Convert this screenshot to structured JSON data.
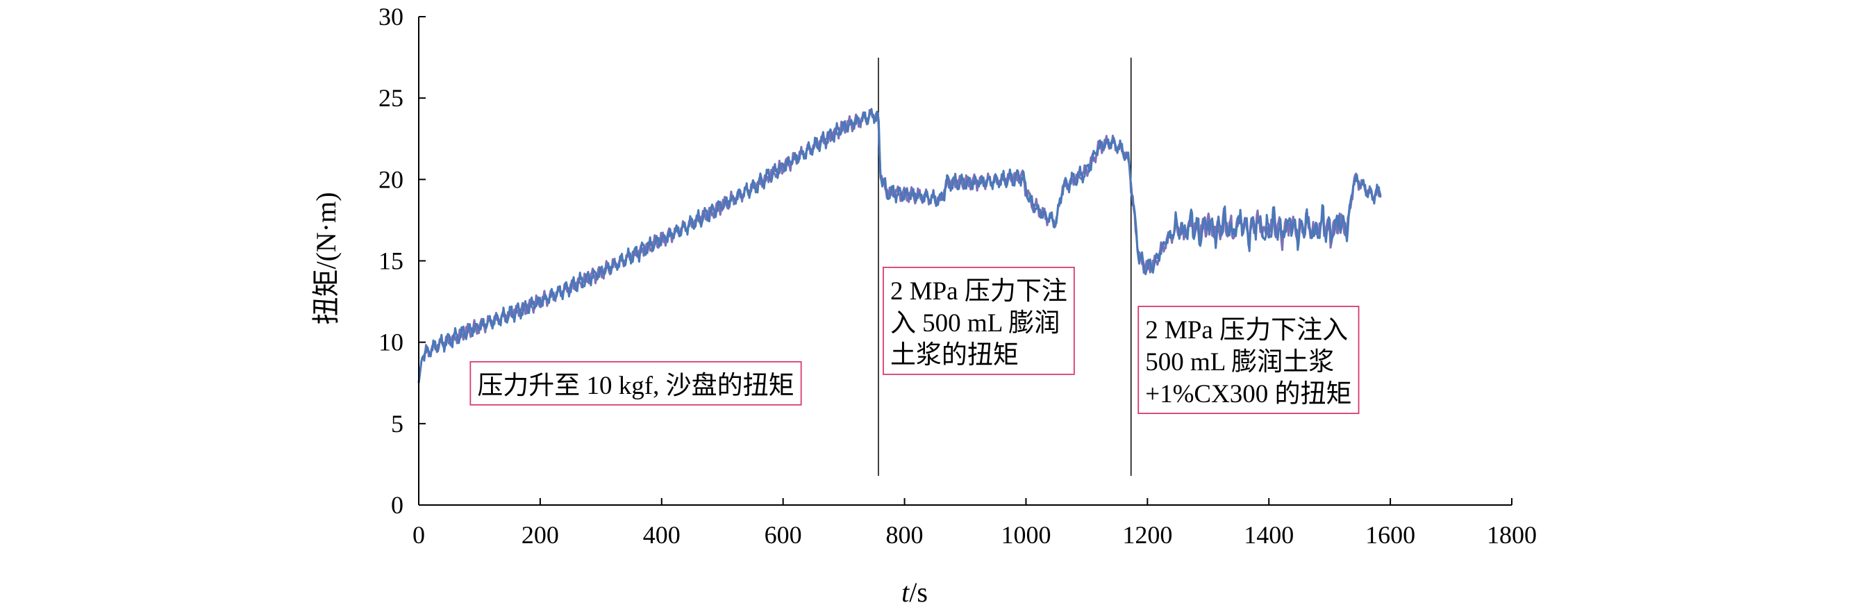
{
  "chart_data": {
    "type": "line",
    "title": "",
    "xlabel_italic": "t",
    "xlabel_rest": "/s",
    "ylabel": "扭矩/(N·m)",
    "xlim": [
      0,
      1800
    ],
    "ylim": [
      0,
      30
    ],
    "x_ticks": [
      0,
      200,
      400,
      600,
      800,
      1000,
      1200,
      1400,
      1600,
      1800
    ],
    "y_ticks": [
      0,
      5,
      10,
      15,
      20,
      25,
      30
    ],
    "grid": false,
    "line_color": "#4a78b8",
    "line_color_secondary": "#7f6fb8",
    "annotation_border_color": "#d63b6a",
    "vertical_markers": [
      757,
      1173
    ],
    "series": [
      {
        "x": [
          0,
          5,
          10,
          30,
          60,
          100,
          150,
          200,
          250,
          300,
          350,
          400,
          450,
          500,
          550,
          600,
          650,
          700,
          730,
          750,
          757,
          760,
          770,
          800,
          840,
          860,
          870,
          900,
          950,
          995,
          1000,
          1010,
          1030,
          1050,
          1060,
          1080,
          1100,
          1120,
          1140,
          1160,
          1170,
          1175,
          1185,
          1195,
          1210,
          1230,
          1250,
          1300,
          1350,
          1400,
          1450,
          1500,
          1530,
          1540,
          1550,
          1570,
          1585
        ],
        "y": [
          7.5,
          9.0,
          9.3,
          9.8,
          10.3,
          11.0,
          11.7,
          12.5,
          13.4,
          14.3,
          15.3,
          16.3,
          17.3,
          18.4,
          19.5,
          20.8,
          22.0,
          23.2,
          23.7,
          24.0,
          23.7,
          20.5,
          19.2,
          19.1,
          18.9,
          18.7,
          19.8,
          19.8,
          19.9,
          20.2,
          19.3,
          18.5,
          17.8,
          17.4,
          19.5,
          20.0,
          20.5,
          22.0,
          22.3,
          21.8,
          21.0,
          19.0,
          15.5,
          14.6,
          14.7,
          16.2,
          17.0,
          17.0,
          17.1,
          17.0,
          17.0,
          17.0,
          17.2,
          20.0,
          19.8,
          19.0,
          19.3
        ]
      }
    ],
    "annotations": [
      {
        "lines": [
          "压力升至 10 kgf, 沙盘的扭矩"
        ],
        "anchor_x": 85,
        "anchor_y": 8.8
      },
      {
        "lines": [
          "2 MPa 压力下注",
          "入 500 mL 膨润",
          "土浆的扭矩"
        ],
        "anchor_x": 765,
        "anchor_y": 14.6
      },
      {
        "lines": [
          "2 MPa 压力下注入",
          "500 mL 膨润土浆",
          "+1%CX300 的扭矩"
        ],
        "anchor_x": 1185,
        "anchor_y": 12.2
      }
    ]
  }
}
